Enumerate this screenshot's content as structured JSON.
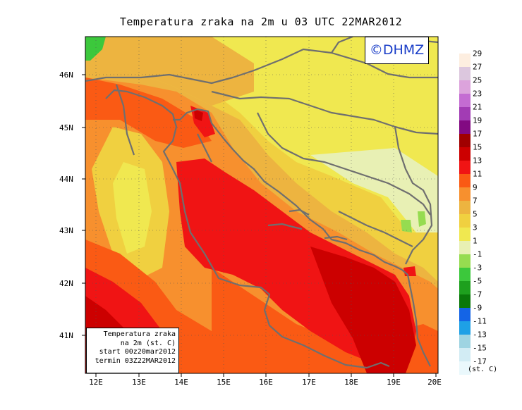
{
  "title": "Temperatura zraka na 2m u 03 UTC 22MAR2012",
  "logo": "©DHMZ",
  "infobox": {
    "line1": "Temperatura zraka",
    "line2": "na 2m (st. C)",
    "line3": "start 00z20mar2012",
    "line4": "termin 03Z22MAR2012"
  },
  "lat_labels": [
    "46N",
    "45N",
    "44N",
    "43N",
    "42N",
    "41N"
  ],
  "lon_labels": [
    "12E",
    "13E",
    "14E",
    "15E",
    "16E",
    "17E",
    "18E",
    "19E",
    "20E"
  ],
  "legend": {
    "unit": "(st. C)",
    "labels": [
      "29",
      "27",
      "25",
      "23",
      "21",
      "19",
      "17",
      "15",
      "13",
      "11",
      "9",
      "7",
      "5",
      "3",
      "1",
      "-1",
      "-3",
      "-5",
      "-7",
      "-9",
      "-11",
      "-13",
      "-15",
      "-17"
    ],
    "colors": [
      "#fdeee0",
      "#dcc7de",
      "#dca3dc",
      "#c46cd2",
      "#a23cb4",
      "#820a82",
      "#a00000",
      "#cc0000",
      "#f01414",
      "#fa5a14",
      "#f7902e",
      "#edb440",
      "#f0d040",
      "#f0e850",
      "#e8f0b4",
      "#96dc50",
      "#3cc83c",
      "#1ea01e",
      "#0a780a",
      "#1464e6",
      "#1ea0e6",
      "#9ed4e2",
      "#d2ecf4",
      "#eaf8fc"
    ]
  },
  "map_colors": {
    "very_warm": "#cc0000",
    "warm": "#f01414",
    "mild_warm": "#fa5a14",
    "mid": "#f7902e",
    "cool": "#edb440",
    "cooler": "#f0d040",
    "cold": "#f0e850",
    "green": "#3cc83c",
    "coast": "#6f6f6f"
  }
}
